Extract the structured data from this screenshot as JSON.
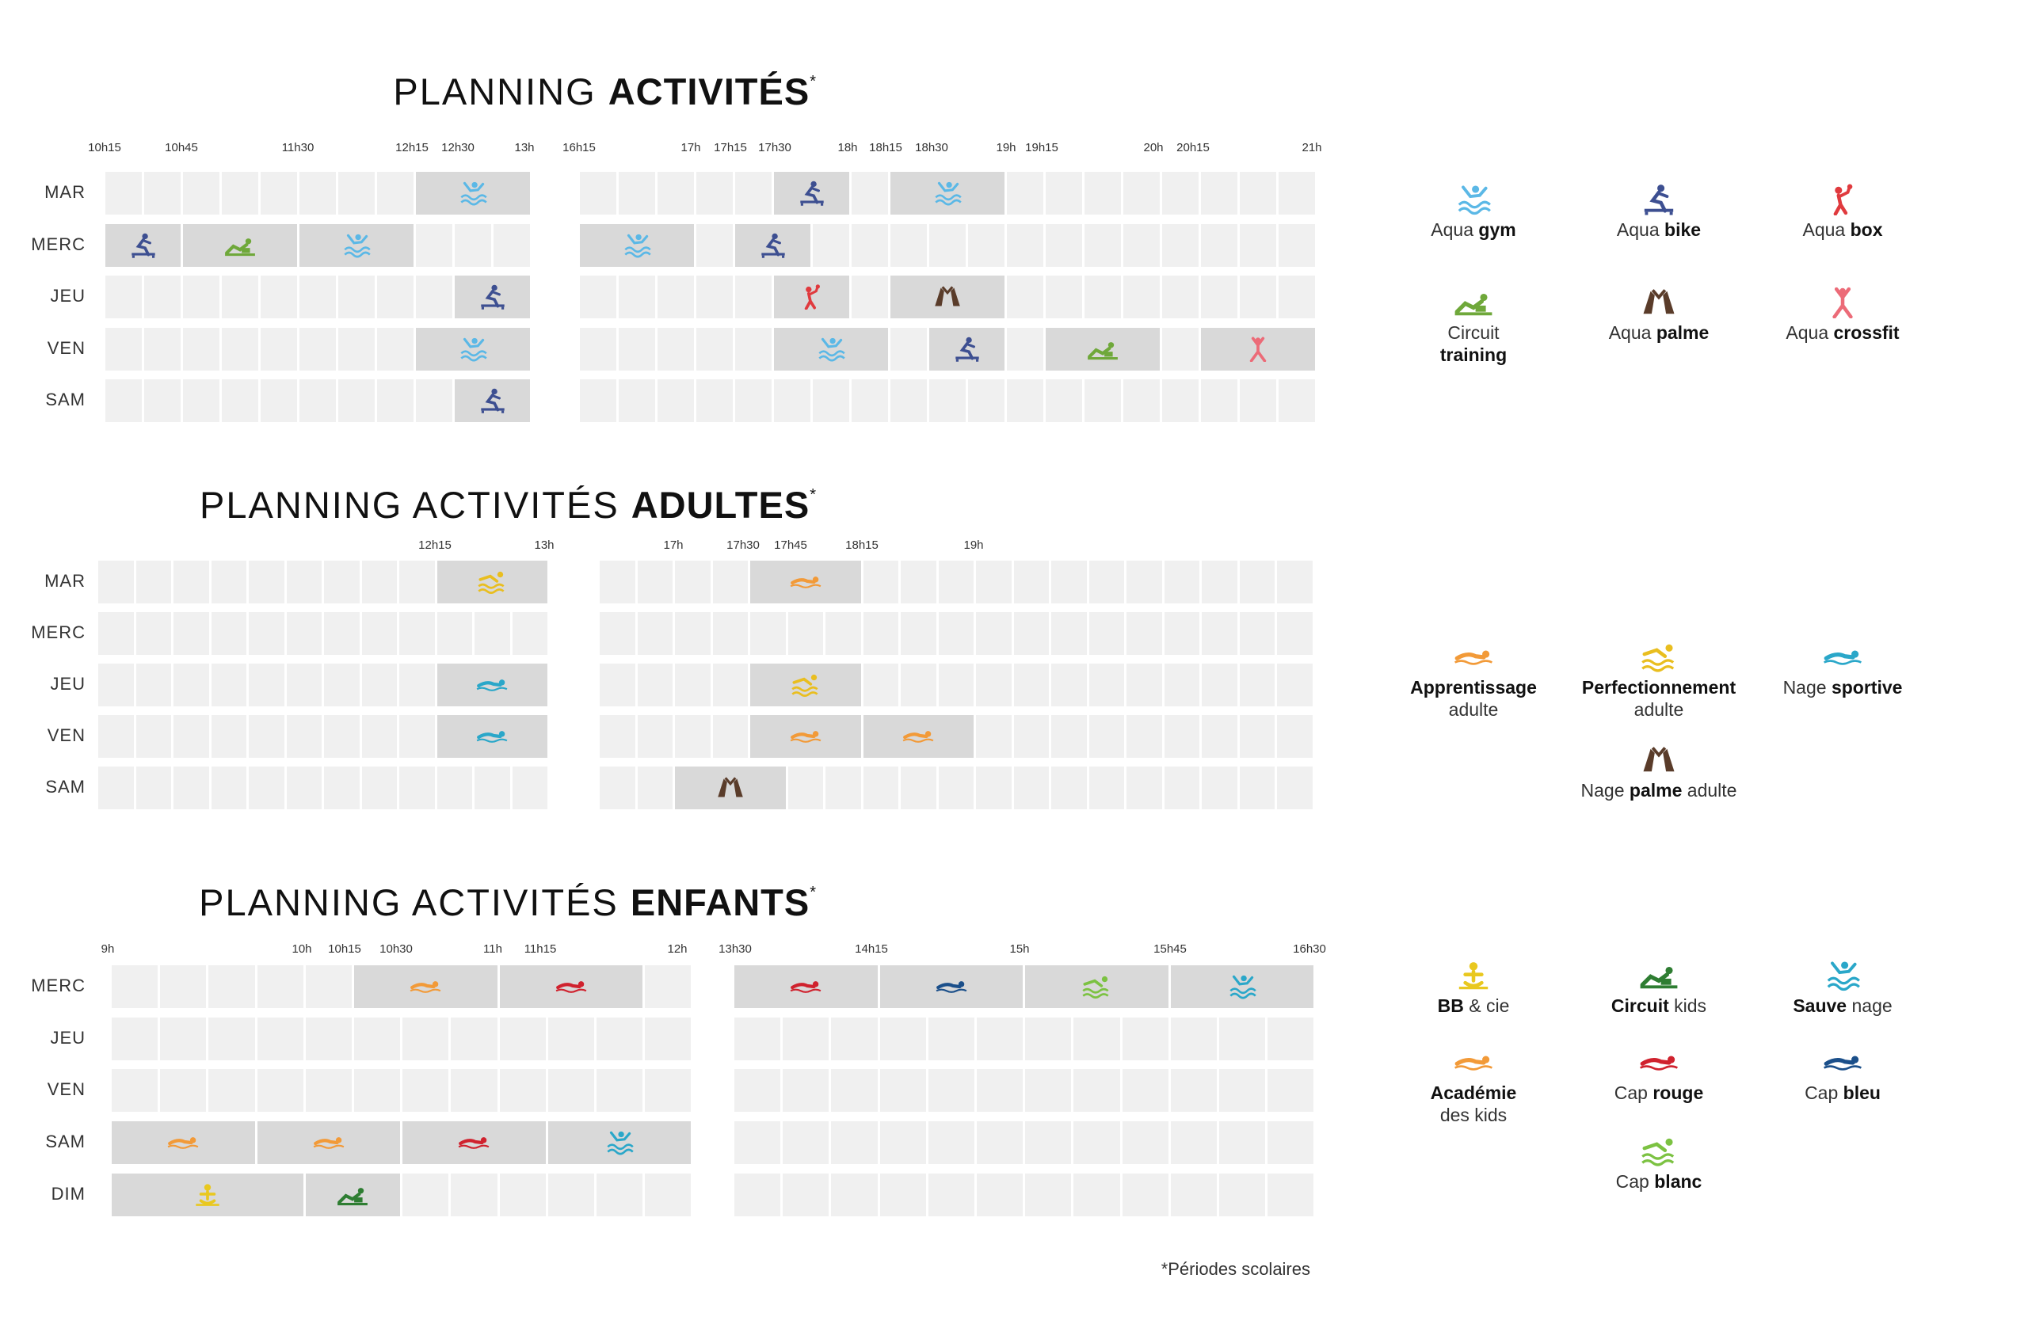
{
  "titles": {
    "activites": {
      "light": "PLANNING ",
      "bold": "ACTIVITÉS",
      "star": "*"
    },
    "adultes": {
      "light": "PLANNING ACTIVITÉS ",
      "bold": "ADULTES",
      "star": "*"
    },
    "enfants": {
      "light": "PLANNING ACTIVITÉS ",
      "bold": "ENFANTS",
      "star": "*"
    }
  },
  "colors": {
    "aqua-gym": "#5bb8e6",
    "aqua-bike": "#3d4f91",
    "aqua-box": "#e03a3e",
    "circuit-training": "#6fa83a",
    "aqua-palme": "#5a3c2a",
    "aqua-crossfit": "#ec6b78",
    "apprentissage": "#f29a38",
    "perfectionnement": "#e9be1f",
    "nage-sportive": "#2aa7c9",
    "nage-palme": "#5a3c2a",
    "bb-cie": "#e9c81f",
    "circuit-kids": "#2e7d32",
    "sauve-nage": "#2aa7c9",
    "academie": "#f29a38",
    "cap-rouge": "#d0222e",
    "cap-bleu": "#1b4f8a",
    "cap-blanc": "#7cc242"
  },
  "s1": {
    "days": [
      "MAR",
      "MERC",
      "JEU",
      "VEN",
      "SAM"
    ],
    "ticksA": [
      "10h15",
      "10h45",
      "11h30",
      "12h15",
      "12h30",
      "13h"
    ],
    "ticksB": [
      "16h15",
      "17h",
      "17h15",
      "17h30",
      "18h",
      "18h15",
      "18h30",
      "19h",
      "19h15",
      "20h",
      "20h15",
      "21h"
    ]
  },
  "s2": {
    "days": [
      "MAR",
      "MERC",
      "JEU",
      "VEN",
      "SAM"
    ],
    "ticksA": [
      "12h15",
      "13h"
    ],
    "ticksB": [
      "17h",
      "17h30",
      "17h45",
      "18h15",
      "19h"
    ]
  },
  "s3": {
    "days": [
      "MERC",
      "JEU",
      "VEN",
      "SAM",
      "DIM"
    ],
    "ticksA": [
      "9h",
      "10h",
      "10h15",
      "10h30",
      "11h",
      "11h15",
      "12h"
    ],
    "ticksB": [
      "13h30",
      "14h15",
      "15h",
      "15h45",
      "16h30"
    ]
  },
  "legend1": [
    {
      "icon": "aqua-gym",
      "light": "Aqua ",
      "bold": "gym"
    },
    {
      "icon": "aqua-bike",
      "light": "Aqua ",
      "bold": "bike"
    },
    {
      "icon": "aqua-box",
      "light": "Aqua ",
      "bold": "box"
    },
    {
      "icon": "circuit-training",
      "light": "Circuit",
      "bold": "training"
    },
    {
      "icon": "aqua-palme",
      "light": "Aqua ",
      "bold": "palme"
    },
    {
      "icon": "aqua-crossfit",
      "light": "Aqua ",
      "bold": "crossfit"
    }
  ],
  "legend2": [
    {
      "icon": "apprentissage",
      "bold": "Apprentissage",
      "light": "adulte"
    },
    {
      "icon": "perfectionnement",
      "bold": "Perfectionnement",
      "light": "adulte"
    },
    {
      "icon": "nage-sportive",
      "light": "Nage ",
      "bold": "sportive"
    },
    {
      "icon": "nage-palme",
      "light": "Nage ",
      "bold": "palme",
      "light2": " adulte"
    }
  ],
  "legend3": [
    {
      "icon": "bb-cie",
      "bold": "BB",
      "light": " & cie"
    },
    {
      "icon": "circuit-kids",
      "bold": "Circuit",
      "light": " kids"
    },
    {
      "icon": "sauve-nage",
      "bold": "Sauve",
      "light": " nage"
    },
    {
      "icon": "academie",
      "bold": "Académie",
      "light": "des kids"
    },
    {
      "icon": "cap-rouge",
      "light": "Cap ",
      "bold": "rouge"
    },
    {
      "icon": "cap-bleu",
      "light": "Cap ",
      "bold": "bleu"
    },
    {
      "icon": "cap-blanc",
      "light": "Cap ",
      "bold": "blanc"
    }
  ],
  "footnote": "*Périodes scolaires"
}
